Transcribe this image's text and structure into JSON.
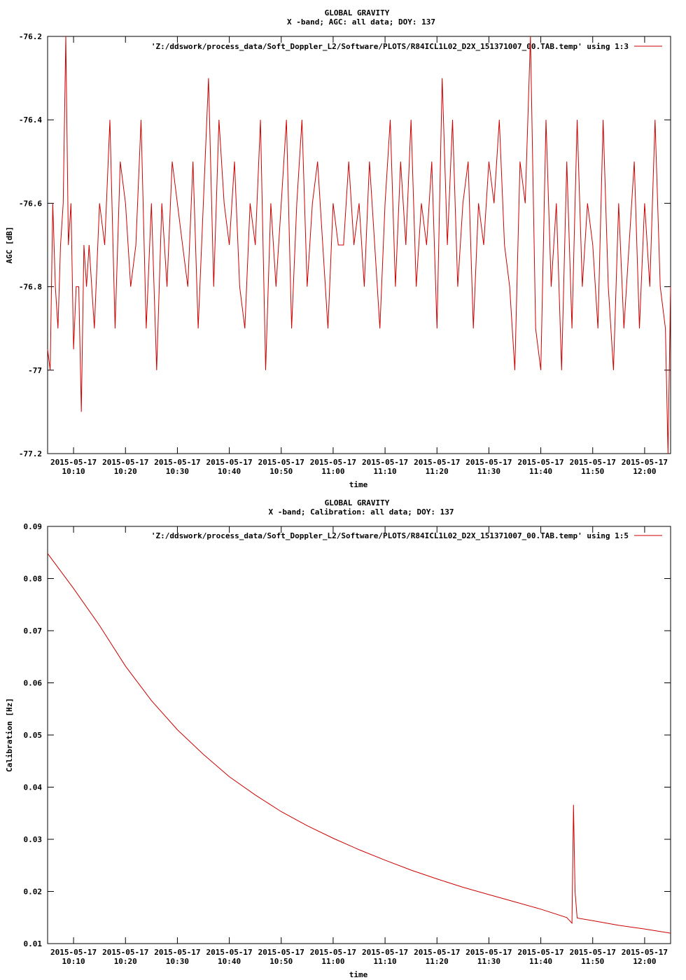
{
  "chart_data": [
    {
      "type": "line",
      "title": "GLOBAL GRAVITY",
      "subtitle": "X -band; AGC: all data; DOY: 137",
      "xlabel": "time",
      "ylabel": "AGC [dB]",
      "ylim": [
        -77.2,
        -76.2
      ],
      "yticks": [
        -76.2,
        -76.4,
        -76.6,
        -76.8,
        -77,
        -77.2
      ],
      "ytick_labels": [
        "-76.2",
        "-76.4",
        "-76.6",
        "-76.8",
        "-77",
        "-77.2"
      ],
      "xlim_minutes": [
        605,
        725
      ],
      "xticks_minutes": [
        610,
        620,
        630,
        640,
        650,
        660,
        670,
        680,
        690,
        700,
        710,
        720
      ],
      "xtick_labels": [
        [
          "2015-05-17",
          "10:10"
        ],
        [
          "2015-05-17",
          "10:20"
        ],
        [
          "2015-05-17",
          "10:30"
        ],
        [
          "2015-05-17",
          "10:40"
        ],
        [
          "2015-05-17",
          "10:50"
        ],
        [
          "2015-05-17",
          "11:00"
        ],
        [
          "2015-05-17",
          "11:10"
        ],
        [
          "2015-05-17",
          "11:20"
        ],
        [
          "2015-05-17",
          "11:30"
        ],
        [
          "2015-05-17",
          "11:40"
        ],
        [
          "2015-05-17",
          "11:50"
        ],
        [
          "2015-05-17",
          "12:00"
        ]
      ],
      "legend_position": "top-right",
      "series": [
        {
          "name": "'Z:/ddswork/process_data/Soft_Doppler_L2/Software/PLOTS/R84ICL1L02_D2X_151371007_00.TAB.temp' using 1:3",
          "color": "#cc0000",
          "x_minutes": [
            605,
            605.5,
            606,
            606.5,
            607,
            607.5,
            608,
            608.5,
            609,
            609.5,
            610,
            610.5,
            611,
            611.5,
            612,
            612.5,
            613,
            614,
            615,
            616,
            617,
            618,
            619,
            620,
            621,
            622,
            623,
            624,
            625,
            626,
            627,
            628,
            629,
            630,
            631,
            632,
            633,
            634,
            635,
            636,
            637,
            638,
            639,
            640,
            641,
            642,
            643,
            644,
            645,
            646,
            647,
            648,
            649,
            650,
            651,
            652,
            653,
            654,
            655,
            656,
            657,
            658,
            659,
            660,
            661,
            662,
            663,
            664,
            665,
            666,
            667,
            668,
            669,
            670,
            671,
            672,
            673,
            674,
            675,
            676,
            677,
            678,
            679,
            680,
            681,
            682,
            683,
            684,
            685,
            686,
            687,
            688,
            689,
            690,
            691,
            692,
            693,
            694,
            695,
            696,
            697,
            698,
            699,
            700,
            701,
            702,
            703,
            704,
            705,
            706,
            707,
            708,
            709,
            710,
            711,
            712,
            713,
            714,
            715,
            716,
            717,
            718,
            719,
            720,
            721,
            722,
            723,
            724,
            724.5,
            725
          ],
          "values": [
            -76.95,
            -77.0,
            -76.6,
            -76.8,
            -76.9,
            -76.7,
            -76.6,
            -76.2,
            -76.7,
            -76.6,
            -76.95,
            -76.8,
            -76.8,
            -77.1,
            -76.7,
            -76.8,
            -76.7,
            -76.9,
            -76.6,
            -76.7,
            -76.4,
            -76.9,
            -76.5,
            -76.6,
            -76.8,
            -76.7,
            -76.4,
            -76.9,
            -76.6,
            -77.0,
            -76.6,
            -76.8,
            -76.5,
            -76.6,
            -76.7,
            -76.8,
            -76.5,
            -76.9,
            -76.6,
            -76.3,
            -76.8,
            -76.4,
            -76.6,
            -76.7,
            -76.5,
            -76.8,
            -76.9,
            -76.6,
            -76.7,
            -76.4,
            -77.0,
            -76.6,
            -76.8,
            -76.6,
            -76.4,
            -76.9,
            -76.6,
            -76.4,
            -76.8,
            -76.6,
            -76.5,
            -76.7,
            -76.9,
            -76.6,
            -76.7,
            -76.7,
            -76.5,
            -76.7,
            -76.6,
            -76.8,
            -76.5,
            -76.7,
            -76.9,
            -76.6,
            -76.4,
            -76.8,
            -76.5,
            -76.7,
            -76.4,
            -76.8,
            -76.6,
            -76.7,
            -76.5,
            -76.9,
            -76.3,
            -76.7,
            -76.4,
            -76.8,
            -76.6,
            -76.5,
            -76.9,
            -76.6,
            -76.7,
            -76.5,
            -76.6,
            -76.4,
            -76.7,
            -76.8,
            -77.0,
            -76.5,
            -76.6,
            -76.2,
            -76.9,
            -77.0,
            -76.4,
            -76.8,
            -76.6,
            -77.0,
            -76.5,
            -76.9,
            -76.4,
            -76.8,
            -76.6,
            -76.7,
            -76.9,
            -76.4,
            -76.8,
            -77.0,
            -76.6,
            -76.9,
            -76.7,
            -76.5,
            -76.9,
            -76.6,
            -76.8,
            -76.4,
            -76.8,
            -76.9,
            -77.2,
            -76.8
          ]
        }
      ]
    },
    {
      "type": "line",
      "title": "GLOBAL GRAVITY",
      "subtitle": "X -band; Calibration: all data; DOY: 137",
      "xlabel": "time",
      "ylabel": "Calibration [Hz]",
      "ylim": [
        0.01,
        0.09
      ],
      "yticks": [
        0.09,
        0.08,
        0.07,
        0.06,
        0.05,
        0.04,
        0.03,
        0.02,
        0.01
      ],
      "ytick_labels": [
        "0.09",
        "0.08",
        "0.07",
        "0.06",
        "0.05",
        "0.04",
        "0.03",
        "0.02",
        "0.01"
      ],
      "xlim_minutes": [
        605,
        725
      ],
      "xticks_minutes": [
        610,
        620,
        630,
        640,
        650,
        660,
        670,
        680,
        690,
        700,
        710,
        720
      ],
      "xtick_labels": [
        [
          "2015-05-17",
          "10:10"
        ],
        [
          "2015-05-17",
          "10:20"
        ],
        [
          "2015-05-17",
          "10:30"
        ],
        [
          "2015-05-17",
          "10:40"
        ],
        [
          "2015-05-17",
          "10:50"
        ],
        [
          "2015-05-17",
          "11:00"
        ],
        [
          "2015-05-17",
          "11:10"
        ],
        [
          "2015-05-17",
          "11:20"
        ],
        [
          "2015-05-17",
          "11:30"
        ],
        [
          "2015-05-17",
          "11:40"
        ],
        [
          "2015-05-17",
          "11:50"
        ],
        [
          "2015-05-17",
          "12:00"
        ]
      ],
      "legend_position": "top-right",
      "series": [
        {
          "name": "'Z:/ddswork/process_data/Soft_Doppler_L2/Software/PLOTS/R84ICL1L02_D2X_151371007_00.TAB.temp' using 1:5",
          "color": "#cc0000",
          "x_minutes": [
            605,
            610,
            615,
            620,
            625,
            630,
            635,
            640,
            645,
            650,
            655,
            660,
            665,
            670,
            675,
            680,
            685,
            690,
            695,
            700,
            705,
            706,
            706.3,
            706.6,
            707,
            710,
            715,
            720,
            725
          ],
          "values": [
            0.0848,
            0.0781,
            0.071,
            0.0632,
            0.0566,
            0.051,
            0.0463,
            0.042,
            0.0385,
            0.0353,
            0.0326,
            0.0302,
            0.028,
            0.026,
            0.0241,
            0.0224,
            0.0208,
            0.0194,
            0.018,
            0.0166,
            0.015,
            0.0139,
            0.0366,
            0.02,
            0.0149,
            0.0144,
            0.0135,
            0.0128,
            0.012
          ]
        }
      ]
    }
  ]
}
